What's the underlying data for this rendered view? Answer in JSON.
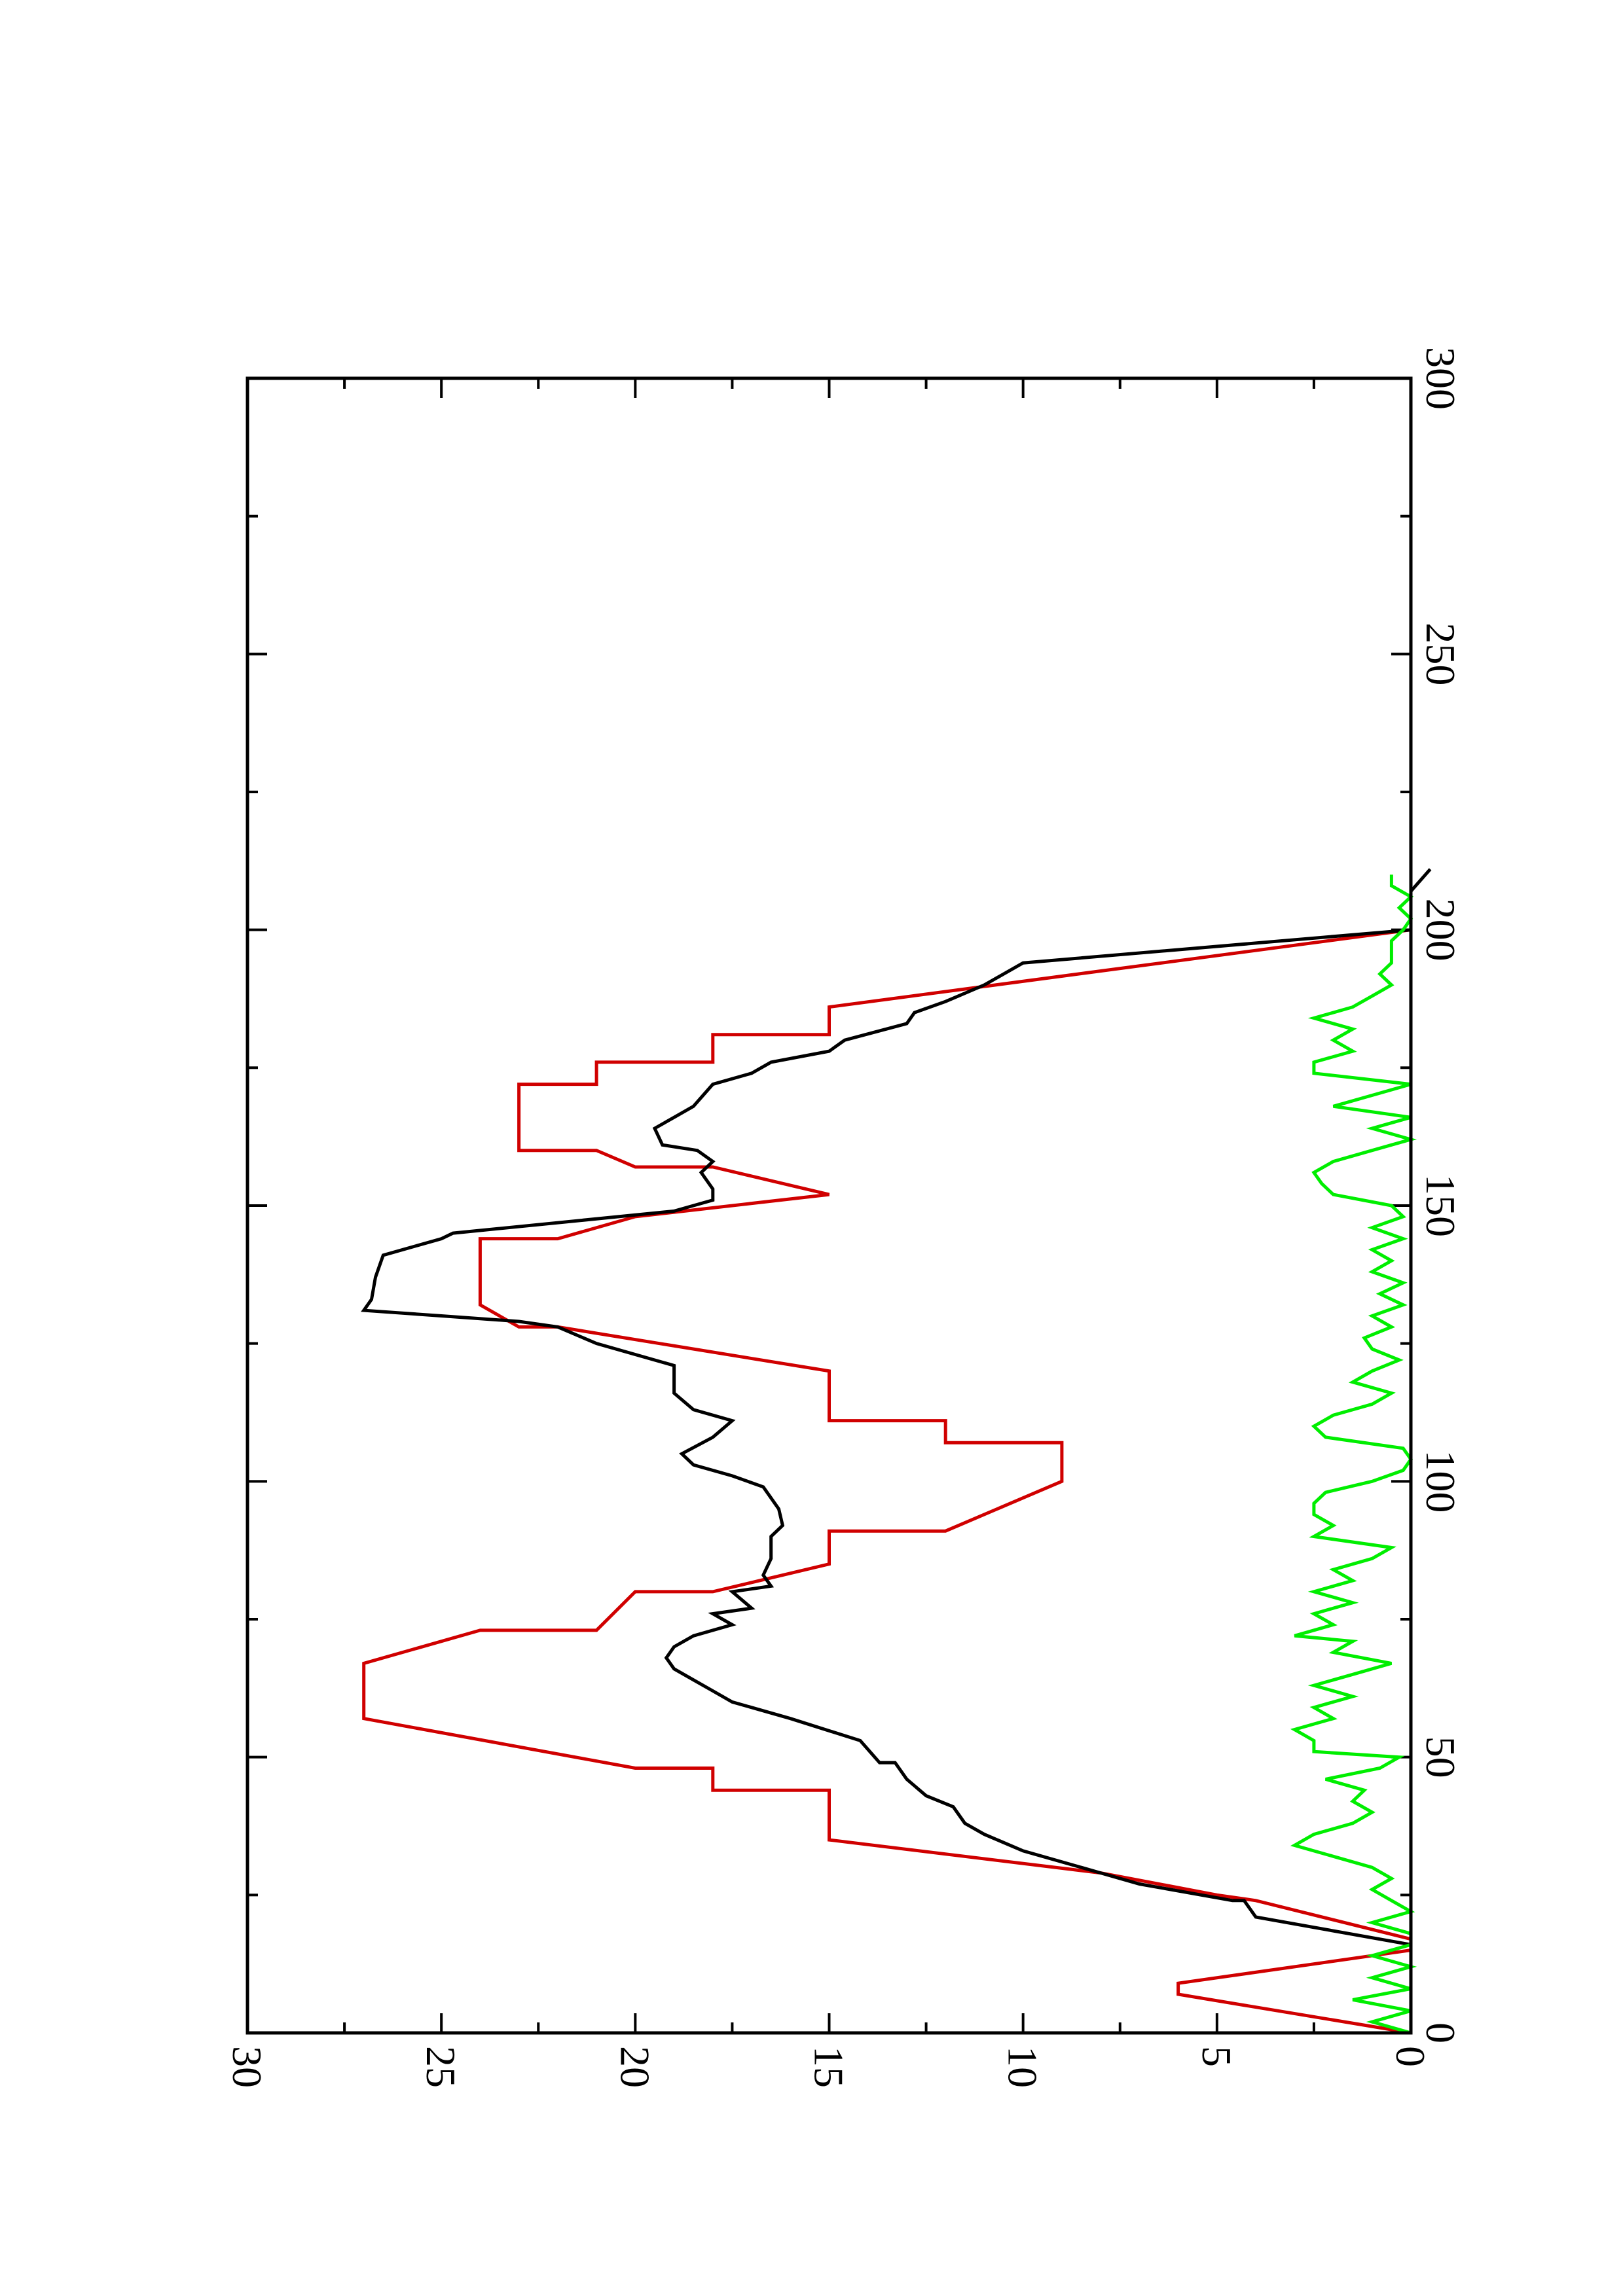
{
  "chart_data": {
    "type": "line",
    "orientation": "rotated-90-clockwise",
    "title": "",
    "xlabel": "",
    "ylabel": "",
    "xlim": [
      0,
      300
    ],
    "ylim": [
      0,
      30
    ],
    "x_ticks_major": [
      0,
      50,
      100,
      150,
      200,
      250,
      300
    ],
    "x_ticks_minor": [
      25,
      75,
      125,
      175,
      225,
      275
    ],
    "y_ticks_major": [
      0,
      5,
      10,
      15,
      20,
      25,
      30
    ],
    "y_ticks_minor": [
      2.5,
      7.5,
      12.5,
      17.5,
      22.5,
      27.5
    ],
    "x_tick_labels": [
      "0",
      "50",
      "100",
      "150",
      "200",
      "250",
      "300"
    ],
    "y_tick_labels": [
      "0",
      "5",
      "10",
      "15",
      "20",
      "25",
      "30"
    ],
    "grid": false,
    "legend": "none",
    "series": [
      {
        "color": "#d00000",
        "points": [
          [
            0,
            0
          ],
          [
            7,
            6
          ],
          [
            9,
            6
          ],
          [
            15,
            0
          ],
          [
            17,
            0
          ],
          [
            24,
            4
          ],
          [
            25,
            5
          ],
          [
            29,
            8
          ],
          [
            35,
            15
          ],
          [
            44,
            15
          ],
          [
            44,
            18
          ],
          [
            48,
            18
          ],
          [
            48,
            20
          ],
          [
            57,
            27
          ],
          [
            67,
            27
          ],
          [
            73,
            24
          ],
          [
            73,
            21
          ],
          [
            80,
            20
          ],
          [
            80,
            18
          ],
          [
            85,
            15
          ],
          [
            91,
            15
          ],
          [
            91,
            12
          ],
          [
            100,
            9
          ],
          [
            107,
            9
          ],
          [
            107,
            12
          ],
          [
            111,
            12
          ],
          [
            111,
            15
          ],
          [
            120,
            15
          ],
          [
            128,
            22
          ],
          [
            128,
            23
          ],
          [
            132,
            24
          ],
          [
            144,
            24
          ],
          [
            144,
            22
          ],
          [
            148,
            20
          ],
          [
            152,
            15
          ],
          [
            157,
            18
          ],
          [
            157,
            20
          ],
          [
            160,
            21
          ],
          [
            160,
            23
          ],
          [
            172,
            23
          ],
          [
            172,
            21
          ],
          [
            176,
            21
          ],
          [
            176,
            18
          ],
          [
            181,
            18
          ],
          [
            181,
            15
          ],
          [
            186,
            15
          ],
          [
            200,
            0
          ]
        ]
      },
      {
        "color": "#000000",
        "points": [
          [
            16,
            0
          ],
          [
            21,
            4
          ],
          [
            24,
            4.3
          ],
          [
            24,
            4.6
          ],
          [
            27,
            7
          ],
          [
            29,
            8
          ],
          [
            33,
            10
          ],
          [
            36,
            11
          ],
          [
            38,
            11.5
          ],
          [
            41,
            11.8
          ],
          [
            43,
            12.5
          ],
          [
            46,
            13
          ],
          [
            49,
            13.3
          ],
          [
            49,
            13.7
          ],
          [
            53,
            14.2
          ],
          [
            57,
            16
          ],
          [
            60,
            17.5
          ],
          [
            62,
            18
          ],
          [
            64,
            18.5
          ],
          [
            66,
            19
          ],
          [
            68,
            19.2
          ],
          [
            70,
            19
          ],
          [
            72,
            18.5
          ],
          [
            74,
            17.5
          ],
          [
            76,
            18
          ],
          [
            77,
            17
          ],
          [
            80,
            17.5
          ],
          [
            81,
            16.5
          ],
          [
            83,
            16.7
          ],
          [
            86,
            16.5
          ],
          [
            90,
            16.5
          ],
          [
            92,
            16.2
          ],
          [
            95,
            16.3
          ],
          [
            99,
            16.7
          ],
          [
            101,
            17.5
          ],
          [
            103,
            18.5
          ],
          [
            105,
            18.8
          ],
          [
            108,
            18
          ],
          [
            111,
            17.5
          ],
          [
            113,
            18.5
          ],
          [
            116,
            19
          ],
          [
            121,
            19
          ],
          [
            125,
            21
          ],
          [
            128,
            22
          ],
          [
            129,
            23
          ],
          [
            130,
            25
          ],
          [
            131,
            27
          ],
          [
            133,
            26.8
          ],
          [
            137,
            26.7
          ],
          [
            141,
            26.5
          ],
          [
            144,
            25
          ],
          [
            145,
            24.7
          ],
          [
            149,
            19
          ],
          [
            150,
            18.5
          ],
          [
            151,
            18
          ],
          [
            153,
            18
          ],
          [
            156,
            18.3
          ],
          [
            158,
            18
          ],
          [
            160,
            18.4
          ],
          [
            161,
            19.3
          ],
          [
            164,
            19.5
          ],
          [
            166,
            19
          ],
          [
            168,
            18.5
          ],
          [
            172,
            18
          ],
          [
            174,
            17
          ],
          [
            176,
            16.5
          ],
          [
            178,
            15
          ],
          [
            180,
            14.6
          ],
          [
            183,
            13
          ],
          [
            185,
            12.8
          ],
          [
            187,
            12
          ],
          [
            190,
            11
          ],
          [
            194,
            10
          ],
          [
            200,
            0
          ],
          [
            207,
            0
          ],
          [
            211,
            -0.5
          ]
        ]
      },
      {
        "color": "#00ee00",
        "points": [
          [
            0,
            0
          ],
          [
            2,
            1
          ],
          [
            4,
            0
          ],
          [
            6,
            1.5
          ],
          [
            8,
            0
          ],
          [
            10,
            1
          ],
          [
            12,
            0
          ],
          [
            14,
            1
          ],
          [
            16,
            0
          ],
          [
            18,
            0
          ],
          [
            20,
            1
          ],
          [
            22,
            0
          ],
          [
            24,
            0.5
          ],
          [
            26,
            1
          ],
          [
            28,
            0.5
          ],
          [
            30,
            1
          ],
          [
            32,
            2
          ],
          [
            34,
            3
          ],
          [
            36,
            2.5
          ],
          [
            38,
            1.5
          ],
          [
            40,
            1
          ],
          [
            42,
            1.5
          ],
          [
            44,
            1.2
          ],
          [
            46,
            2.2
          ],
          [
            48,
            0.8
          ],
          [
            50,
            0.3
          ],
          [
            51,
            2.5
          ],
          [
            53,
            2.5
          ],
          [
            55,
            3
          ],
          [
            57,
            2
          ],
          [
            59,
            2.5
          ],
          [
            61,
            1.5
          ],
          [
            63,
            2.5
          ],
          [
            65,
            1.5
          ],
          [
            67,
            0.5
          ],
          [
            69,
            2
          ],
          [
            71,
            1.5
          ],
          [
            72,
            3
          ],
          [
            74,
            2
          ],
          [
            76,
            2.5
          ],
          [
            78,
            1.5
          ],
          [
            80,
            2.5
          ],
          [
            82,
            1.5
          ],
          [
            84,
            2
          ],
          [
            86,
            1
          ],
          [
            88,
            0.5
          ],
          [
            90,
            2.5
          ],
          [
            92,
            2
          ],
          [
            94,
            2.5
          ],
          [
            96,
            2.5
          ],
          [
            98,
            2.2
          ],
          [
            100,
            1
          ],
          [
            102,
            0.2
          ],
          [
            104,
            0
          ],
          [
            106,
            0.2
          ],
          [
            108,
            2.2
          ],
          [
            110,
            2.5
          ],
          [
            112,
            2
          ],
          [
            114,
            1
          ],
          [
            116,
            0.5
          ],
          [
            118,
            1.5
          ],
          [
            120,
            1
          ],
          [
            122,
            0.3
          ],
          [
            124,
            1
          ],
          [
            126,
            1.2
          ],
          [
            128,
            0.5
          ],
          [
            130,
            1
          ],
          [
            132,
            0.2
          ],
          [
            134,
            0.8
          ],
          [
            136,
            0.2
          ],
          [
            138,
            1
          ],
          [
            140,
            0.5
          ],
          [
            142,
            1
          ],
          [
            144,
            0.2
          ],
          [
            146,
            1
          ],
          [
            148,
            0.2
          ],
          [
            150,
            0.5
          ],
          [
            152,
            2
          ],
          [
            154,
            2.3
          ],
          [
            156,
            2.5
          ],
          [
            158,
            2
          ],
          [
            160,
            1
          ],
          [
            162,
            0
          ],
          [
            164,
            1
          ],
          [
            166,
            0
          ],
          [
            168,
            2
          ],
          [
            170,
            1
          ],
          [
            172,
            0
          ],
          [
            174,
            2.5
          ],
          [
            176,
            2.5
          ],
          [
            178,
            1.5
          ],
          [
            180,
            2
          ],
          [
            182,
            1.5
          ],
          [
            184,
            2.5
          ],
          [
            186,
            1.5
          ],
          [
            188,
            1
          ],
          [
            190,
            0.5
          ],
          [
            192,
            0.8
          ],
          [
            194,
            0.5
          ],
          [
            196,
            0.5
          ],
          [
            198,
            0.5
          ],
          [
            200,
            0.2
          ],
          [
            202,
            0
          ],
          [
            204,
            0.3
          ],
          [
            206,
            0
          ],
          [
            208,
            0.5
          ],
          [
            210,
            0.5
          ]
        ]
      }
    ]
  }
}
